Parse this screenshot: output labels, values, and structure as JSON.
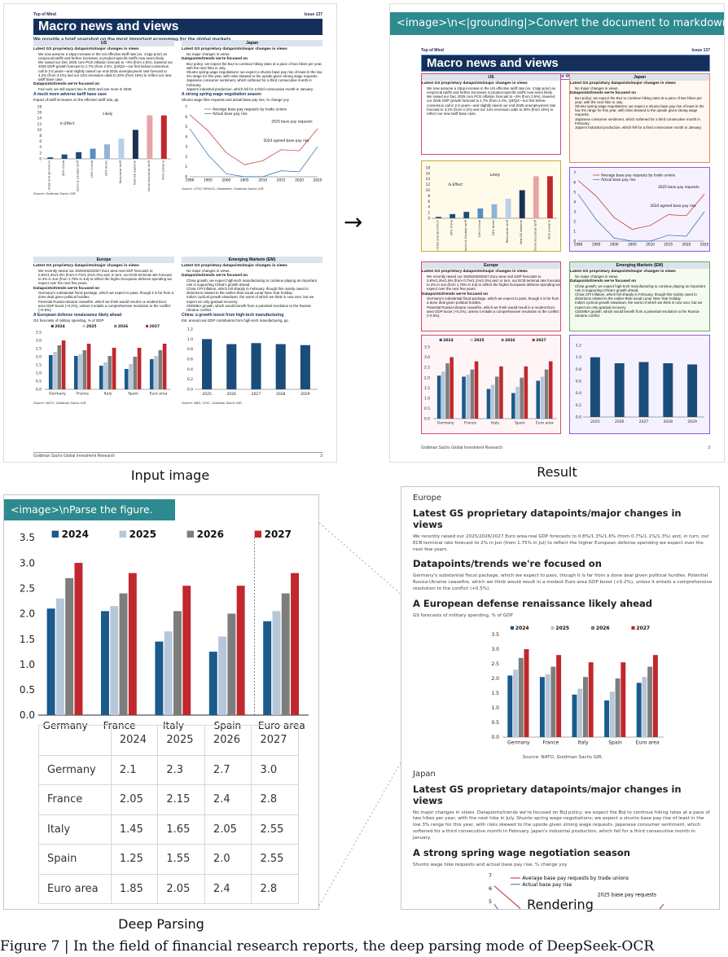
{
  "captions": {
    "input": "Input image",
    "result": "Result",
    "deep": "Deep Parsing",
    "rendering": "Rendering",
    "figure": "Figure 7 | In the field of financial research reports, the deep parsing mode of DeepSeek-OCR"
  },
  "prompts": {
    "convert": "<image>\\n<|grounding|>Convert the document to markdown.",
    "parse": "<image>\\nParse the figure."
  },
  "doc": {
    "kicker": "Top of Mind",
    "issue": "Issue 137",
    "title": "Macro news and views",
    "subtitle": "We provide a brief snapshot on the most important economies for the global markets",
    "us": {
      "name": "US",
      "h1": "Latest GS proprietary datapoints/major changes in views",
      "b1": "We now assume a 10pp increase in the US effective tariff rate (vs. 4.5pp prior) as reciprocal tariffs and further increases in product-specific tariffs now seem likely.",
      "b2": "We raised our Dec 2025 core PCE inflation forecast to ~3% (from 2.5%), lowered our 2025 GDP growth forecast to 1.7% (from 2.4%, Q4/Q4—our first below-consensus call in 2.5 years—and slightly raised our end-2025 unemployment rate forecast to 4.2% (from 4.1%) and our 12m recession odds to 20% (from 15%) to reflect our new tariff base case.",
      "h2": "Datapoints/trends we're focused on",
      "b3": "Fed cuts; we still expect two in 2025 and one more in 2026.",
      "ctitle": "A much more adverse tariff base case",
      "csub": "Impact of tariff increases on the effective tariff rate, pp",
      "src": "Source: Goldman Sachs GIR."
    },
    "japan": {
      "name": "Japan",
      "h1": "Latest GS proprietary datapoints/major changes in views",
      "b1": "No major changes in views.",
      "h2": "Datapoints/trends we're focused on",
      "b2": "BoJ policy; we expect the BoJ to continue hiking rates at a pace of two hikes per year, with the next hike in July.",
      "b3": "Shunto spring wage negotiations; we expect a shunto base pay rise of least in the low 3% range for this year, with risks skewed to the upside given strong wage requests.",
      "b4": "Japanese consumer sentiment, which softened for a third consecutive month in February.",
      "b5": "Japan's industrial production, which fell for a third consecutive month in January.",
      "ctitle": "A strong spring wage negotiation season",
      "csub": "Shunto wage hike requests and actual base pay rise, % change yoy",
      "src": "Source: JTUC-RENGO, Keidanren, Goldman Sachs GIR."
    },
    "europe": {
      "name": "Europe",
      "h1": "Latest GS proprietary datapoints/major changes in views",
      "b1": "We recently raised our 2025/2026/2027 Euro area real GDP forecasts to 0.8%/1.3%/1.6% (from 0.7%/1.1%/1.3%) and, in turn, our ECB terminal rate forecast to 2% in Jun (from 1.75% in Jul) to reflect the higher European defense spending we expect over the next few years.",
      "h2": "Datapoints/trends we're focused on",
      "b2": "Germany's substantial fiscal package, which we expect to pass, though it is far from a done deal given political hurdles.",
      "b3": "Potential Russia-Ukraine ceasefire, which we think would result in a modest Euro area GDP boost (+0.2%), unless it entails a comprehensive resolution to the conflict (+0.5%).",
      "ctitle": "A European defense renaissance likely ahead",
      "csub": "GS forecasts of military spending, % of GDP",
      "src": "Source: NATO, Goldman Sachs GIR."
    },
    "em": {
      "name": "Emerging Markets (EM)",
      "h1": "Latest GS proprietary datapoints/major changes in views",
      "b1": "No major changes in views.",
      "h2": "Datapoints/trends we're focused on",
      "b2": "China growth; we expect high-tech manufacturing to continue playing an important role in supporting China's growth ahead.",
      "b3": "China CPI inflation, which fell sharply in February, though this mainly owed to distortions related to the earlier-than-usual Lunar New Year holiday.",
      "b4": "India's cyclical growth slowdown, the worst of which we think is now over, but we expect an only-gradual recovery.",
      "b5": "CEEMEA growth, which would benefit from a potential resolution to the Russia-Ukraine conflict.",
      "ctitle": "China: a growth boost from high-tech manufacturing",
      "csub": "Est. annual real GDP contribution from high-tech manufacturing, pp",
      "src": "Source: NBS, CEIC, Goldman Sachs GIR."
    },
    "footer": "Goldman Sachs Global Investment Research",
    "page": "3"
  },
  "rendering": {
    "europe": "Europe",
    "h1": "Latest GS proprietary datapoints/major changes in views",
    "p1": "We recently raised our 2025/2026/2027 Euro area real GDP forecasts to 0.8%/1.3%/1.6% (from 0.7%/1.1%/1.3%) and, in turn, our ECB terminal rate forecast to 2% in Jun (from 1.75% in Jul) to reflect the higher European defense spending we expect over the next few years.",
    "h2": "Datapoints/trends we're focused on",
    "p2": "Germany's substantial fiscal package, which we expect to pass, though it is far from a done deal given political hurdles. Potential Russia-Ukraine ceasefire, which we think would result in a modest Euro area GDP boost (+0.2%), unless it entails a comprehensive resolution to the conflict (+0.5%).",
    "h3": "A European defense renaissance likely ahead",
    "p3": "GS forecasts of military spending, % of GDP",
    "src": "Source: NATO, Goldman Sachs GIR.",
    "japan": "Japan",
    "h4": "Latest GS proprietary datapoints/major changes in views",
    "p4": "No major changes in views. Datapoints/trends we're focused on BoJ policy; we expect the BoJ to continue hiking rates at a pace of two hikes per year, with the next hike in July. Shunto spring wage negotiations; we expect a shunto base pay rise of least in the low 3% range for this year, with risks skewed to the upside given strong wage requests. Japanese consumer sentiment, which softened for a third consecutive month in February. Japan's industrial production, which fell for a third consecutive month in January.",
    "h5": "A strong spring wage negotiation season",
    "p5": "Shunto wage hike requests and actual base pay rise, % change yoy",
    "leg1": "Average base pay requests by trade unions",
    "leg2": "Actual base pay rise",
    "ann1": "2025 base pay requests",
    "ann2": "2024 agreed base pay rise"
  },
  "chart_data": [
    {
      "type": "bar",
      "categories": [
        "Germany",
        "France",
        "Italy",
        "Spain",
        "Euro area"
      ],
      "series": [
        {
          "name": "2024",
          "values": [
            2.1,
            2.05,
            1.45,
            1.25,
            1.85
          ]
        },
        {
          "name": "2025",
          "values": [
            2.3,
            2.15,
            1.65,
            1.55,
            2.05
          ]
        },
        {
          "name": "2026",
          "values": [
            2.7,
            2.4,
            2.05,
            2.0,
            2.4
          ]
        },
        {
          "name": "2027",
          "values": [
            3.0,
            2.8,
            2.55,
            2.55,
            2.8
          ]
        }
      ],
      "ylim": [
        0,
        3.5
      ],
      "yticks": [
        "0.0",
        "0.5",
        "1.0",
        "1.5",
        "2.0",
        "2.5",
        "3.0",
        "3.5"
      ],
      "colors": [
        "#1a5a8c",
        "#b6c7da",
        "#7d7d7d",
        "#c0282d"
      ],
      "legend": "top"
    },
    {
      "type": "table",
      "columns": [
        "",
        "2024",
        "2025",
        "2026",
        "2027"
      ],
      "rows": [
        [
          "Germany",
          "2.1",
          "2.3",
          "2.7",
          "3.0"
        ],
        [
          "France",
          "2.05",
          "2.15",
          "2.4",
          "2.8"
        ],
        [
          "Italy",
          "1.45",
          "1.65",
          "2.05",
          "2.55"
        ],
        [
          "Spain",
          "1.25",
          "1.55",
          "2.0",
          "2.55"
        ],
        [
          "Euro area",
          "1.85",
          "2.05",
          "2.4",
          "2.8"
        ]
      ]
    },
    {
      "type": "bar",
      "categories": [
        "2025",
        "2026",
        "2027",
        "2028",
        "2029"
      ],
      "values": [
        1.0,
        0.9,
        0.92,
        0.9,
        0.88
      ],
      "ylim": [
        0,
        1.2
      ],
      "yticks": [
        "0.0",
        "0.2",
        "0.4",
        "0.6",
        "0.8",
        "1.0",
        "1.2"
      ]
    },
    {
      "type": "bar",
      "categories": [
        "20% Steel and aluminum",
        "20% China",
        "Limited Mexico & Canada tariff",
        "10% Critical",
        "25% Autos",
        "Reciprocal tariff",
        "New GS baseline",
        "Additional reciprocal tariff",
        "Risk scenario"
      ],
      "values": [
        0.5,
        1.5,
        2.3,
        3.5,
        5,
        7,
        10,
        15,
        15
      ],
      "ylim": [
        0,
        18
      ],
      "yticks": [
        "0",
        "2",
        "4",
        "6",
        "8",
        "10",
        "12",
        "14",
        "16",
        "18"
      ],
      "annotations": [
        "In Effect",
        "Likely"
      ]
    },
    {
      "type": "line",
      "x": [
        "1990",
        "1995",
        "2000",
        "2005",
        "2010",
        "2015",
        "2020",
        "2025"
      ],
      "series": [
        {
          "name": "Average base pay requests by trade unions",
          "values": [
            6.2,
            4.6,
            2.4,
            1.2,
            1.6,
            2.7,
            2.6,
            4.8
          ]
        },
        {
          "name": "Actual base pay rise",
          "values": [
            4.8,
            2.2,
            0.3,
            0.0,
            0.0,
            0.6,
            0.5,
            3.0
          ]
        }
      ],
      "ylim": [
        0,
        7
      ],
      "yticks": [
        "0",
        "1",
        "2",
        "3",
        "4",
        "5",
        "6",
        "7"
      ],
      "annotations": [
        "2025 base pay requests",
        "2024 agreed base pay rise"
      ]
    }
  ]
}
